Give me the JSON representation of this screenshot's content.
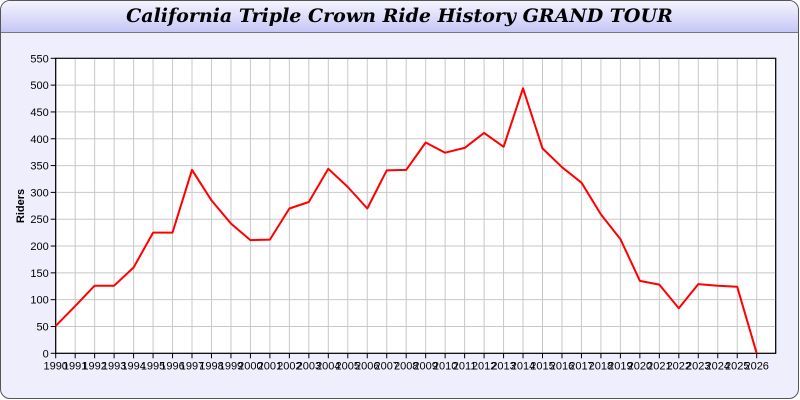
{
  "chart_data": {
    "type": "line",
    "title": "California Triple Crown Ride History GRAND TOUR",
    "xlabel": "",
    "ylabel": "Riders",
    "ylim": [
      0,
      550
    ],
    "yticks": [
      0,
      50,
      100,
      150,
      200,
      250,
      300,
      350,
      400,
      450,
      500,
      550
    ],
    "grid": true,
    "line_color": "#ff0000",
    "x": [
      1990,
      1991,
      1992,
      1993,
      1994,
      1995,
      1996,
      1997,
      1998,
      1999,
      2000,
      2001,
      2002,
      2003,
      2004,
      2005,
      2006,
      2007,
      2008,
      2009,
      2010,
      2011,
      2012,
      2013,
      2014,
      2015,
      2016,
      2017,
      2018,
      2019,
      2020,
      2021,
      2022,
      2023,
      2024,
      2025,
      2026
    ],
    "series": [
      {
        "values": [
          51,
          88,
          126,
          126,
          160,
          225,
          225,
          342,
          285,
          242,
          211,
          212,
          270,
          282,
          344,
          310,
          270,
          341,
          342,
          393,
          374,
          383,
          411,
          385,
          494,
          382,
          347,
          318,
          259,
          213,
          135,
          128,
          84,
          129,
          126,
          124,
          0
        ]
      }
    ]
  }
}
